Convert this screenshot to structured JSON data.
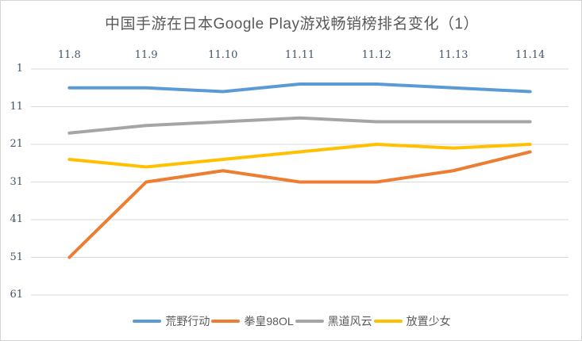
{
  "chart_data": {
    "type": "line",
    "title": "中国手游在日本Google Play游戏畅销榜排名变化（1）",
    "categories": [
      "11.8",
      "11.9",
      "11.10",
      "11.11",
      "11.12",
      "11.13",
      "11.14"
    ],
    "series": [
      {
        "name": "荒野行动",
        "color": "#5B9BD5",
        "values": [
          6,
          6,
          7,
          5,
          5,
          6,
          7
        ]
      },
      {
        "name": "拳皇98OL",
        "color": "#ED7D31",
        "values": [
          51,
          31,
          28,
          31,
          31,
          28,
          23
        ]
      },
      {
        "name": "黑道风云",
        "color": "#A5A5A5",
        "values": [
          18,
          16,
          15,
          14,
          15,
          15,
          15
        ]
      },
      {
        "name": "放置少女",
        "color": "#FFC000",
        "values": [
          25,
          27,
          25,
          23,
          21,
          22,
          21
        ]
      }
    ],
    "y_axis": {
      "ticks": [
        1,
        11,
        21,
        31,
        41,
        51,
        61
      ],
      "min": 1,
      "max": 61,
      "inverted": true
    },
    "x_axis_position": "top",
    "legend_position": "bottom",
    "grid": true,
    "gridline_color": "#d9d9d9",
    "axis_text_color": "#44546a",
    "title_color": "#595959"
  }
}
